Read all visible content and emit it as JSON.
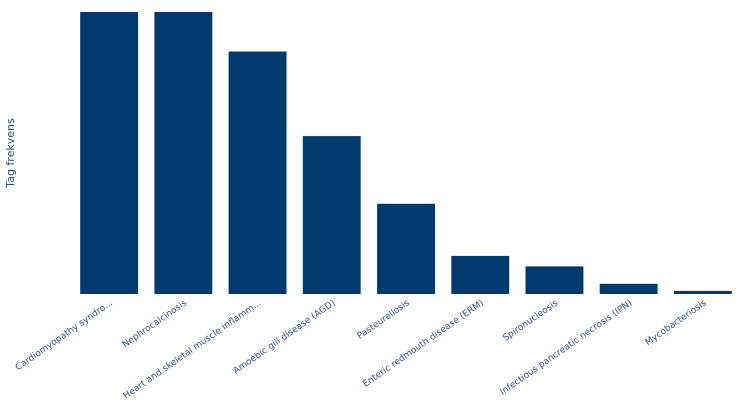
{
  "chart_data": {
    "type": "bar",
    "title": "",
    "xlabel": "",
    "ylabel": "Tag frekvens",
    "categories": [
      "Cardiomyopathy syndro...",
      "Nephrocalcinosis",
      "Heart and skeletal muscle inflamm...",
      "Amoebic gill disease (AGD)",
      "Pasteurellosis",
      "Enteric redmouth disease (ERM)",
      "Spironucleosis",
      "Infectious pancreatic necrosis (IPN)",
      "Mycobacteriosis"
    ],
    "values": [
      100,
      100,
      86,
      56,
      32,
      13.5,
      9.8,
      3.6,
      1.1
    ],
    "ylim": [
      0,
      100
    ],
    "grid": false,
    "colors": {
      "bar": "#023a6e",
      "text": "#2b4f86"
    }
  }
}
